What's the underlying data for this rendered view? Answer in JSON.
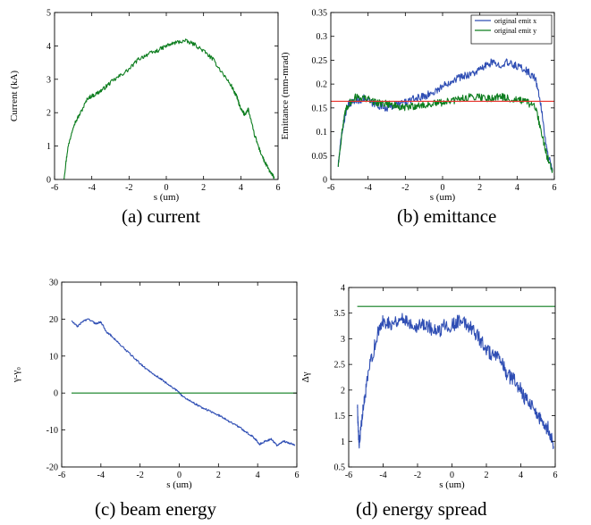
{
  "colors": {
    "blue": "#2f4eb4",
    "green": "#0c7d1e",
    "red": "#e8302a",
    "axis": "#000000"
  },
  "captions": {
    "a": "(a) current",
    "b": "(b) emittance",
    "c": "(c) beam energy",
    "d": "(d) energy spread"
  },
  "chart_data": [
    {
      "id": "a",
      "type": "line",
      "xlabel": "s (um)",
      "ylabel": "Current (kA)",
      "xlim": [
        -6,
        6
      ],
      "ylim": [
        0,
        5
      ],
      "xticks": [
        "-6",
        "-4",
        "-2",
        "0",
        "2",
        "4",
        "6"
      ],
      "yticks": [
        "0",
        "1",
        "2",
        "3",
        "4",
        "5"
      ],
      "grid": false,
      "series": [
        {
          "color": "green",
          "noise": 0.06,
          "x": [
            -5.5,
            -5.3,
            -5.0,
            -4.6,
            -4.2,
            -3.8,
            -3.4,
            -3.0,
            -2.5,
            -2.0,
            -1.5,
            -1.0,
            -0.5,
            0.0,
            0.5,
            1.0,
            1.5,
            2.0,
            2.5,
            3.0,
            3.5,
            3.8,
            4.0,
            4.2,
            4.4,
            4.7,
            5.0,
            5.3,
            5.6,
            5.8
          ],
          "y": [
            0.0,
            0.9,
            1.6,
            2.0,
            2.45,
            2.55,
            2.7,
            2.9,
            3.1,
            3.3,
            3.6,
            3.75,
            3.85,
            4.0,
            4.1,
            4.15,
            4.05,
            3.85,
            3.6,
            3.2,
            2.8,
            2.45,
            2.1,
            1.95,
            2.1,
            1.4,
            0.9,
            0.5,
            0.2,
            0.05
          ]
        }
      ]
    },
    {
      "id": "b",
      "type": "line",
      "xlabel": "s (um)",
      "ylabel": "Emittance (mm-mrad)",
      "xlim": [
        -6,
        6
      ],
      "ylim": [
        0,
        0.35
      ],
      "xticks": [
        "-6",
        "-4",
        "-2",
        "0",
        "2",
        "4",
        "6"
      ],
      "yticks": [
        "0",
        "0.05",
        "0.1",
        "0.15",
        "0.2",
        "0.25",
        "0.3",
        "0.35"
      ],
      "grid": false,
      "legend": {
        "position": "top-right"
      },
      "series": [
        {
          "name": "original emit x",
          "color": "blue",
          "noise": 0.008,
          "x": [
            -5.6,
            -5.4,
            -5.2,
            -5.0,
            -4.6,
            -4.2,
            -3.8,
            -3.4,
            -3.0,
            -2.6,
            -2.2,
            -1.8,
            -1.4,
            -1.0,
            -0.6,
            -0.2,
            0.2,
            0.6,
            1.0,
            1.4,
            1.8,
            2.2,
            2.6,
            3.0,
            3.4,
            3.8,
            4.2,
            4.6,
            5.0,
            5.3,
            5.6,
            5.9
          ],
          "y": [
            0.03,
            0.1,
            0.14,
            0.16,
            0.165,
            0.17,
            0.16,
            0.155,
            0.15,
            0.155,
            0.16,
            0.165,
            0.17,
            0.175,
            0.18,
            0.19,
            0.2,
            0.21,
            0.215,
            0.22,
            0.225,
            0.235,
            0.245,
            0.24,
            0.245,
            0.24,
            0.235,
            0.225,
            0.21,
            0.15,
            0.06,
            0.02
          ]
        },
        {
          "name": "original emit y",
          "color": "green",
          "noise": 0.008,
          "x": [
            -5.6,
            -5.4,
            -5.2,
            -5.0,
            -4.6,
            -4.2,
            -3.8,
            -3.4,
            -3.0,
            -2.6,
            -2.2,
            -1.8,
            -1.4,
            -1.0,
            -0.6,
            -0.2,
            0.2,
            0.6,
            1.0,
            1.4,
            1.8,
            2.2,
            2.6,
            3.0,
            3.4,
            3.8,
            4.2,
            4.6,
            5.0,
            5.3,
            5.6,
            5.9
          ],
          "y": [
            0.03,
            0.1,
            0.145,
            0.16,
            0.175,
            0.17,
            0.165,
            0.16,
            0.16,
            0.155,
            0.15,
            0.152,
            0.155,
            0.155,
            0.158,
            0.16,
            0.163,
            0.165,
            0.17,
            0.172,
            0.175,
            0.172,
            0.17,
            0.175,
            0.17,
            0.168,
            0.165,
            0.16,
            0.15,
            0.1,
            0.05,
            0.02
          ]
        },
        {
          "color": "red",
          "noise": 0,
          "x": [
            -6,
            6
          ],
          "y": [
            0.164,
            0.164
          ]
        }
      ]
    },
    {
      "id": "c",
      "type": "line",
      "xlabel": "s (um)",
      "ylabel": "γ-γ₀",
      "xlim": [
        -6,
        6
      ],
      "ylim": [
        -20,
        30
      ],
      "xticks": [
        "-6",
        "-4",
        "-2",
        "0",
        "2",
        "4",
        "6"
      ],
      "yticks": [
        "-20",
        "-10",
        "0",
        "10",
        "20",
        "30"
      ],
      "grid": false,
      "series": [
        {
          "color": "blue",
          "noise": 0.25,
          "x": [
            -5.5,
            -5.2,
            -4.9,
            -4.6,
            -4.3,
            -4.0,
            -3.7,
            -3.4,
            -3.0,
            -2.6,
            -2.2,
            -1.8,
            -1.4,
            -1.0,
            -0.6,
            -0.2,
            0.2,
            0.6,
            1.0,
            1.4,
            1.8,
            2.2,
            2.6,
            3.0,
            3.4,
            3.8,
            4.1,
            4.4,
            4.7,
            5.0,
            5.3,
            5.6,
            5.9
          ],
          "y": [
            19.5,
            18.0,
            19.5,
            20.0,
            18.8,
            19.2,
            16.5,
            15.2,
            13.0,
            11.0,
            9.0,
            7.0,
            5.5,
            4.0,
            2.5,
            1.0,
            -1.0,
            -2.2,
            -3.5,
            -4.5,
            -5.5,
            -6.5,
            -7.8,
            -9.0,
            -10.5,
            -12.0,
            -13.8,
            -13.0,
            -12.5,
            -14.2,
            -13.0,
            -13.5,
            -14.0
          ]
        },
        {
          "color": "green",
          "noise": 0,
          "x": [
            -5.5,
            6
          ],
          "y": [
            0,
            0
          ]
        }
      ]
    },
    {
      "id": "d",
      "type": "line",
      "xlabel": "s (um)",
      "ylabel": "Δγ",
      "xlim": [
        -6,
        6
      ],
      "ylim": [
        0.5,
        4
      ],
      "xticks": [
        "-6",
        "-4",
        "-2",
        "0",
        "2",
        "4",
        "6"
      ],
      "yticks": [
        "0.5",
        "1",
        "1.5",
        "2",
        "2.5",
        "3",
        "3.5",
        "4"
      ],
      "grid": false,
      "series": [
        {
          "color": "blue",
          "noise": 0.14,
          "x": [
            -5.5,
            -5.4,
            -5.2,
            -5.0,
            -4.7,
            -4.3,
            -4.0,
            -3.6,
            -3.2,
            -2.8,
            -2.4,
            -2.0,
            -1.6,
            -1.2,
            -0.8,
            -0.4,
            0.0,
            0.4,
            0.8,
            1.2,
            1.6,
            2.0,
            2.4,
            2.8,
            3.2,
            3.6,
            4.0,
            4.3,
            4.6,
            5.0,
            5.3,
            5.6,
            5.9
          ],
          "y": [
            1.7,
            0.95,
            1.5,
            2.0,
            2.6,
            3.1,
            3.35,
            3.3,
            3.35,
            3.4,
            3.3,
            3.25,
            3.3,
            3.2,
            3.1,
            3.3,
            3.25,
            3.35,
            3.3,
            3.2,
            3.0,
            2.8,
            2.65,
            2.6,
            2.3,
            2.2,
            2.0,
            1.8,
            1.75,
            1.5,
            1.3,
            1.25,
            0.9
          ]
        },
        {
          "color": "green",
          "noise": 0,
          "x": [
            -5.5,
            6
          ],
          "y": [
            3.63,
            3.63
          ]
        }
      ]
    }
  ]
}
